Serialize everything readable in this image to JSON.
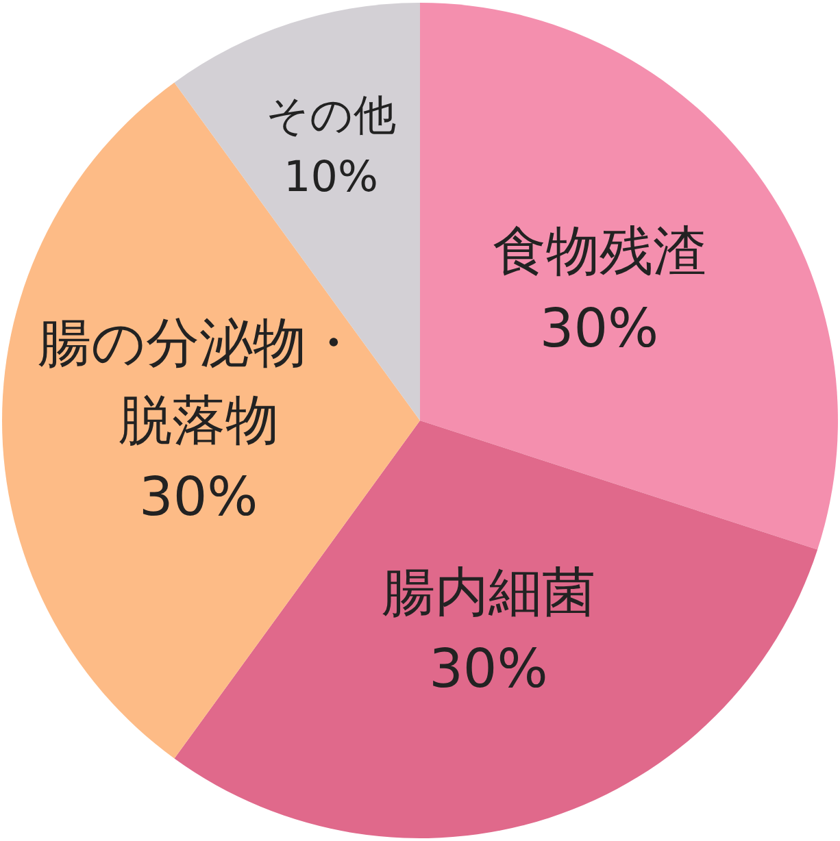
{
  "chart_data": {
    "type": "pie",
    "categories": [
      "食物残渣",
      "腸内細菌",
      "腸の分泌物・脱落物",
      "その他"
    ],
    "values": [
      30,
      30,
      30,
      10
    ],
    "colors": [
      "#f48fae",
      "#e0698b",
      "#fdbb86",
      "#d3d0d5"
    ],
    "value_labels": [
      "30%",
      "30%",
      "30%",
      "10%"
    ]
  }
}
